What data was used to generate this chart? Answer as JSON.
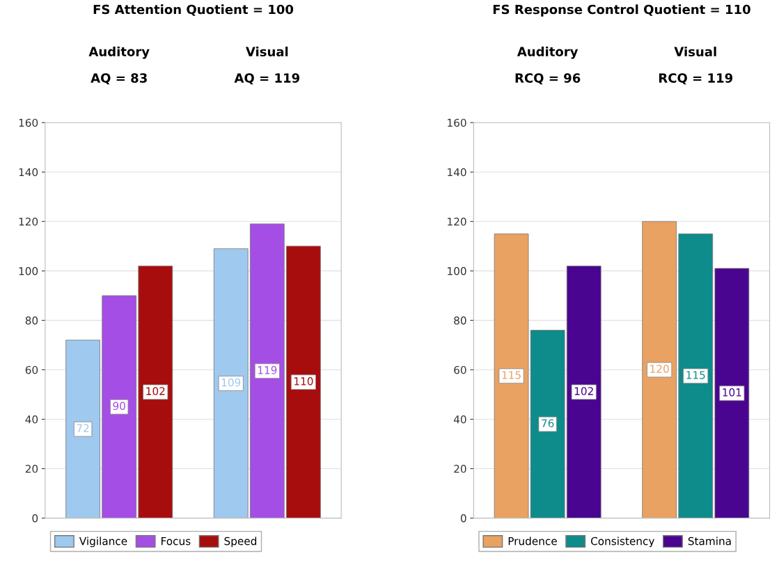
{
  "chart_data": [
    {
      "type": "bar",
      "title": "FS Attention Quotient = 100",
      "categories": [
        "Auditory",
        "Visual"
      ],
      "annotations": [
        "AQ = 83",
        "AQ = 119"
      ],
      "series": [
        {
          "name": "Vigilance",
          "color": "#9fc9ef",
          "values": [
            72,
            109
          ]
        },
        {
          "name": "Focus",
          "color": "#a54ee6",
          "values": [
            90,
            119
          ]
        },
        {
          "name": "Speed",
          "color": "#a80d0d",
          "values": [
            102,
            110
          ]
        }
      ],
      "ylim": [
        0,
        160
      ],
      "yticks": [
        0,
        20,
        40,
        60,
        80,
        100,
        120,
        140,
        160
      ],
      "grid": "y",
      "legend": "bottom",
      "data_labels": true
    },
    {
      "type": "bar",
      "title": "FS Response Control Quotient = 110",
      "categories": [
        "Auditory",
        "Visual"
      ],
      "annotations": [
        "RCQ = 96",
        "RCQ = 119"
      ],
      "series": [
        {
          "name": "Prudence",
          "color": "#e9a262",
          "values": [
            115,
            120
          ]
        },
        {
          "name": "Consistency",
          "color": "#0e8b8b",
          "values": [
            76,
            115
          ]
        },
        {
          "name": "Stamina",
          "color": "#4a0590",
          "values": [
            102,
            101
          ]
        }
      ],
      "ylim": [
        0,
        160
      ],
      "yticks": [
        0,
        20,
        40,
        60,
        80,
        100,
        120,
        140,
        160
      ],
      "grid": "y",
      "legend": "bottom",
      "data_labels": true
    }
  ]
}
